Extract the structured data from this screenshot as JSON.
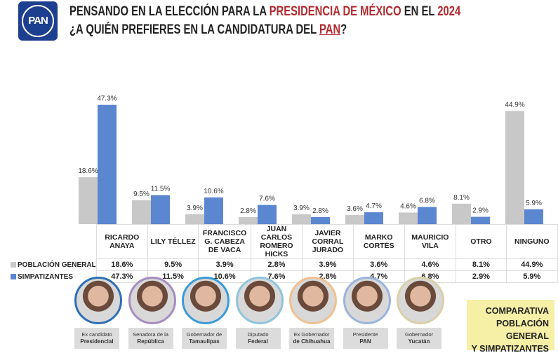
{
  "header": {
    "logo_text": "PAN",
    "line1_a": "PENSANDO EN LA ELECCIÓN PARA LA ",
    "line1_b": "PRESIDENCIA DE MÉXICO",
    "line1_c": " EN EL ",
    "line1_d": "2024",
    "line2_a": "¿A QUIÉN PREFIERES EN LA CANDIDATURA DEL ",
    "line2_b": "PAN",
    "line2_c": "?"
  },
  "chart_data": {
    "type": "bar",
    "title": "¿A quién prefieres en la candidatura del PAN?",
    "categories": [
      "RICARDO ANAYA",
      "LILY TÉLLEZ",
      "FRANCISCO G. CABEZA DE VACA",
      "JUAN CARLOS ROMERO HICKS",
      "JAVIER CORRAL JURADO",
      "MARKO CORTÉS",
      "MAURICIO VILA",
      "OTRO",
      "NINGUNO"
    ],
    "series": [
      {
        "name": "POBLACIÓN GENERAL",
        "color": "#c8c8c8",
        "values": [
          18.6,
          9.5,
          3.9,
          2.8,
          3.9,
          3.6,
          4.6,
          8.1,
          44.9
        ],
        "labels": [
          "18.6%",
          "9.5%",
          "3.9%",
          "2.8%",
          "3.9%",
          "3.6%",
          "4.6%",
          "8.1%",
          "44.9%"
        ]
      },
      {
        "name": "SIMPATIZANTES",
        "color": "#5b86d0",
        "values": [
          47.3,
          11.5,
          10.6,
          7.6,
          2.8,
          4.7,
          6.8,
          2.9,
          5.9
        ],
        "labels": [
          "47.3%",
          "11.5%",
          "10.6%",
          "7.6%",
          "2.8%",
          "4.7%",
          "6.8%",
          "2.9%",
          "5.9%"
        ]
      }
    ],
    "ylim": [
      0,
      50
    ],
    "unit": "%",
    "legend": "table-bottom-left",
    "grid": false
  },
  "people": [
    {
      "line1": "Ex candidato",
      "line2": "Presidencial",
      "color": "#2e6fb5"
    },
    {
      "line1": "Senadora de la",
      "line2": "República",
      "color": "#a58cc0"
    },
    {
      "line1": "Gobernador de",
      "line2": "Tamaulipas",
      "color": "#3b9ad8"
    },
    {
      "line1": "Diputado",
      "line2": "Federal",
      "color": "#8fc3dc"
    },
    {
      "line1": "Ex Gobernador",
      "line2": "de Chihuahua",
      "color": "#f0c090"
    },
    {
      "line1": "Presidente",
      "line2": "PAN",
      "color": "#9bb3dd"
    },
    {
      "line1": "Gobernador",
      "line2": "Yucatán",
      "color": "#d8d0a8"
    }
  ],
  "note": {
    "l1": "COMPARATIVA",
    "l2": "POBLACIÓN GENERAL",
    "l3": "Y SIMPATIZANTES"
  }
}
